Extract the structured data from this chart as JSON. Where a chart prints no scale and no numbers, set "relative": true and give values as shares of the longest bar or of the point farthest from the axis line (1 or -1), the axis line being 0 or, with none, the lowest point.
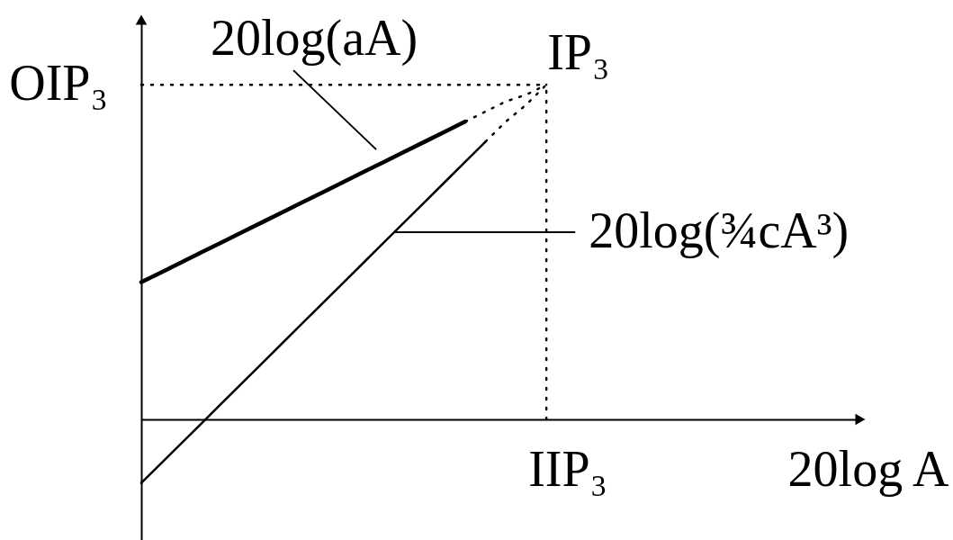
{
  "chart_data": {
    "type": "line",
    "relative": true,
    "xlabel": "20log A",
    "legend": "top",
    "categories": [
      null,
      null,
      null,
      null,
      null,
      null,
      null,
      null,
      null,
      null,
      null,
      null,
      null,
      null,
      null,
      null,
      null,
      null,
      null,
      null,
      null,
      null,
      null,
      null,
      null,
      null,
      null,
      null,
      null,
      null,
      null,
      null,
      null,
      null,
      null,
      null
    ],
    "series": [
      {
        "name": "20log(aA)",
        "color": "#000000",
        "values": [
          0.41,
          0.44,
          0.47,
          0.5,
          0.53,
          0.56,
          0.59,
          0.62,
          0.65,
          0.68,
          0.71,
          0.74,
          0.77,
          0.8,
          0.83,
          0.86,
          0.89,
          null,
          null,
          null,
          null,
          null,
          null,
          null,
          null,
          null,
          null,
          null,
          null,
          null,
          null,
          null,
          null,
          null,
          null,
          null
        ]
      },
      {
        "color": "#000000",
        "line_style": "dotted",
        "values": [
          null,
          null,
          null,
          null,
          null,
          null,
          null,
          null,
          null,
          null,
          null,
          null,
          null,
          null,
          null,
          null,
          0.89,
          0.92,
          0.95,
          0.97,
          1.0,
          null,
          null,
          null,
          null,
          null,
          null,
          null,
          null,
          null,
          null,
          null,
          null,
          null,
          null,
          null
        ]
      },
      {
        "name": "20log(¾cA³)",
        "color": "#000000",
        "values": [
          -0.19,
          -0.13,
          -0.07,
          -0.01,
          0.05,
          0.11,
          0.17,
          0.23,
          0.29,
          0.35,
          0.41,
          0.47,
          0.53,
          0.59,
          0.65,
          0.71,
          0.77,
          0.83,
          null,
          null,
          null,
          null,
          null,
          null,
          null,
          null,
          null,
          null,
          null,
          null,
          null,
          null,
          null,
          null,
          null,
          null
        ]
      },
      {
        "color": "#000000",
        "line_style": "dotted",
        "values": [
          null,
          null,
          null,
          null,
          null,
          null,
          null,
          null,
          null,
          null,
          null,
          null,
          null,
          null,
          null,
          null,
          null,
          0.83,
          0.89,
          0.94,
          1.0,
          null,
          null,
          null,
          null,
          null,
          null,
          null,
          null,
          null,
          null,
          null,
          null,
          null,
          null,
          null
        ]
      }
    ],
    "ref_lines": [
      {
        "axis": "y",
        "value": 1,
        "label": "OIP₃",
        "line_style": "dotted"
      }
    ],
    "annotations": [
      "IP₃",
      "IIP₃"
    ]
  }
}
